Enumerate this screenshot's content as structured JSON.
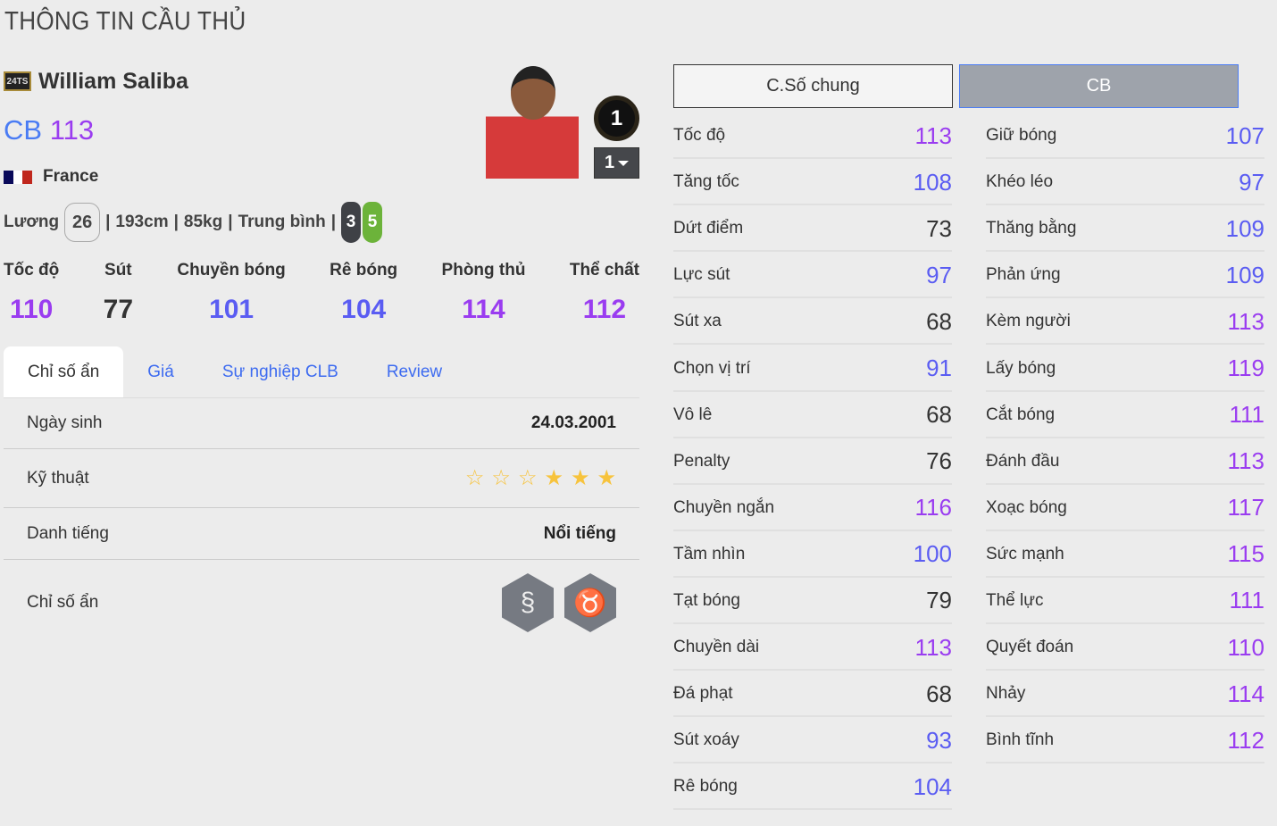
{
  "page_title": "THÔNG TIN CẦU THỦ",
  "player": {
    "season_logo": "24TS",
    "name": "William Saliba",
    "position": "CB",
    "ovr": "113",
    "nation": "France",
    "salary_label": "Lương",
    "salary": "26",
    "height": "193cm",
    "weight": "85kg",
    "body": "Trung bình",
    "weak_foot_left": "3",
    "weak_foot_right": "5",
    "rank_badge": "1",
    "level": "1"
  },
  "colors": {
    "purple": "#9a3cf0",
    "blue": "#5a5cf2",
    "dark": "#333333",
    "position": "#4a7cf4",
    "tab_link": "#3d6bf0",
    "star": "#f7c33c"
  },
  "main_stats": [
    {
      "label": "Tốc độ",
      "value": "110"
    },
    {
      "label": "Sút",
      "value": "77"
    },
    {
      "label": "Chuyền bóng",
      "value": "101"
    },
    {
      "label": "Rê bóng",
      "value": "104"
    },
    {
      "label": "Phòng thủ",
      "value": "114"
    },
    {
      "label": "Thể chất",
      "value": "112"
    }
  ],
  "tabs": [
    {
      "label": "Chỉ số ẩn",
      "active": true
    },
    {
      "label": "Giá"
    },
    {
      "label": "Sự nghiệp CLB"
    },
    {
      "label": "Review"
    }
  ],
  "details": {
    "birth_label": "Ngày sinh",
    "birth": "24.03.2001",
    "skill_label": "Kỹ thuật",
    "skill_stars": 3,
    "skill_stars_total": 6,
    "fame_label": "Danh tiếng",
    "fame": "Nổi tiếng",
    "traits_label": "Chỉ số ẩn",
    "traits": [
      "snake-icon",
      "bull-icon"
    ]
  },
  "buttons": {
    "general": "C.Số chung",
    "position": "CB"
  },
  "attributes_left": [
    {
      "label": "Tốc độ",
      "value": "113"
    },
    {
      "label": "Tăng tốc",
      "value": "108"
    },
    {
      "label": "Dứt điểm",
      "value": "73"
    },
    {
      "label": "Lực sút",
      "value": "97"
    },
    {
      "label": "Sút xa",
      "value": "68"
    },
    {
      "label": "Chọn vị trí",
      "value": "91"
    },
    {
      "label": "Vô lê",
      "value": "68"
    },
    {
      "label": "Penalty",
      "value": "76"
    },
    {
      "label": "Chuyền ngắn",
      "value": "116"
    },
    {
      "label": "Tầm nhìn",
      "value": "100"
    },
    {
      "label": "Tạt bóng",
      "value": "79"
    },
    {
      "label": "Chuyền dài",
      "value": "113"
    },
    {
      "label": "Đá phạt",
      "value": "68"
    },
    {
      "label": "Sút xoáy",
      "value": "93"
    },
    {
      "label": "Rê bóng",
      "value": "104"
    }
  ],
  "attributes_right": [
    {
      "label": "Giữ bóng",
      "value": "107"
    },
    {
      "label": "Khéo léo",
      "value": "97"
    },
    {
      "label": "Thăng bằng",
      "value": "109"
    },
    {
      "label": "Phản ứng",
      "value": "109"
    },
    {
      "label": "Kèm người",
      "value": "113"
    },
    {
      "label": "Lấy bóng",
      "value": "119"
    },
    {
      "label": "Cắt bóng",
      "value": "111"
    },
    {
      "label": "Đánh đầu",
      "value": "113"
    },
    {
      "label": "Xoạc bóng",
      "value": "117"
    },
    {
      "label": "Sức mạnh",
      "value": "115"
    },
    {
      "label": "Thể lực",
      "value": "111"
    },
    {
      "label": "Quyết đoán",
      "value": "110"
    },
    {
      "label": "Nhảy",
      "value": "114"
    },
    {
      "label": "Bình tĩnh",
      "value": "112"
    }
  ]
}
